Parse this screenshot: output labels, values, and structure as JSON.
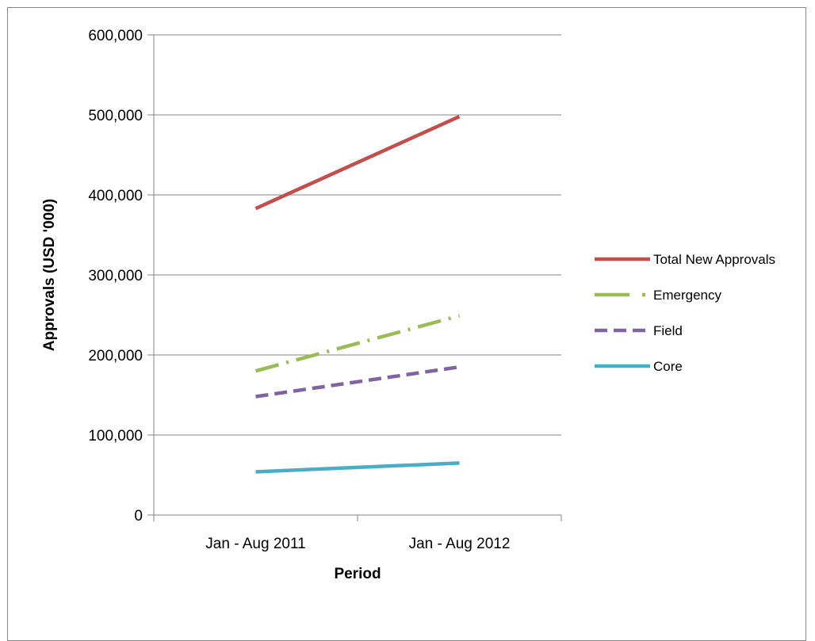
{
  "chart_data": {
    "type": "line",
    "title": "",
    "xlabel": "Period",
    "ylabel": "Approvals (USD '000)",
    "categories": [
      "Jan - Aug 2011",
      "Jan - Aug 2012"
    ],
    "ylim": [
      0,
      600000
    ],
    "yticks": [
      0,
      100000,
      200000,
      300000,
      400000,
      500000,
      600000
    ],
    "ytick_labels": [
      "0",
      "100,000",
      "200,000",
      "300,000",
      "400,000",
      "500,000",
      "600,000"
    ],
    "grid": true,
    "legend_position": "right",
    "series": [
      {
        "name": "Total New Approvals",
        "values": [
          383000,
          498000
        ],
        "color": "#C0504D",
        "style": "solid"
      },
      {
        "name": "Emergency",
        "values": [
          180000,
          249000
        ],
        "color": "#9BBB59",
        "style": "dash-dot"
      },
      {
        "name": "Field",
        "values": [
          148000,
          185000
        ],
        "color": "#8064A2",
        "style": "dashed"
      },
      {
        "name": "Core",
        "values": [
          54000,
          65000
        ],
        "color": "#4BACC6",
        "style": "solid"
      }
    ]
  }
}
